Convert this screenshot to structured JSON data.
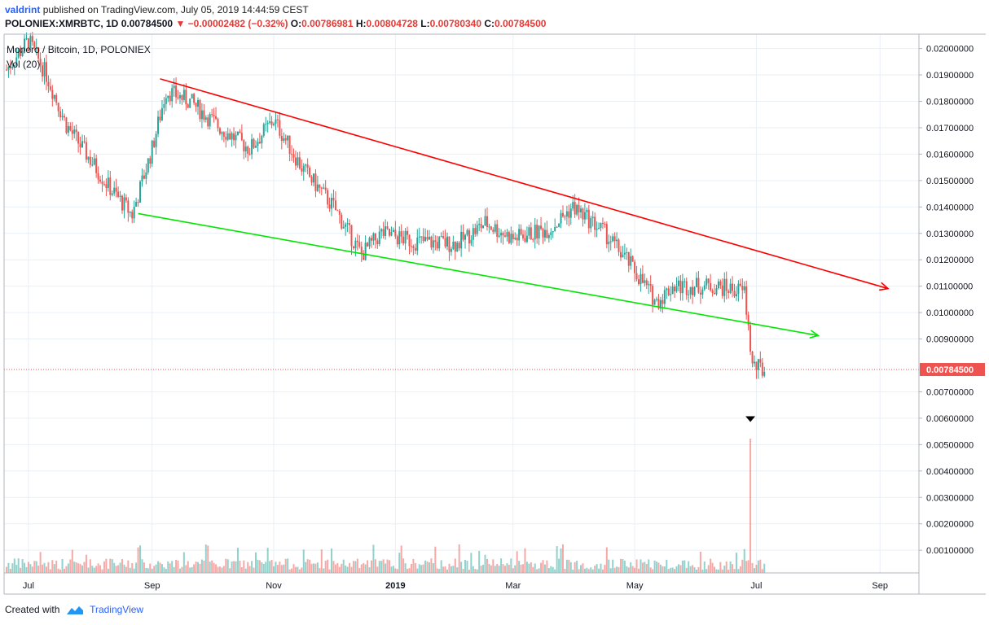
{
  "header": {
    "author": "valdrint",
    "published_text": "published on TradingView.com, July 05, 2019 14:44:59 CEST",
    "symbol": "POLONIEX:XMRBTC, 1D",
    "last": "0.00784500",
    "change_arrow": "▼",
    "change": "−0.00002482 (−0.32%)",
    "open_label": "O:",
    "open": "0.00786981",
    "high_label": "H:",
    "high": "0.00804728",
    "low_label": "L:",
    "low": "0.00780340",
    "close_label": "C:",
    "close": "0.00784500"
  },
  "legend": {
    "series_title": "Monero / Bitcoin, 1D, POLONIEX",
    "volume_label": "Vol (20)"
  },
  "footer": {
    "created_with": "Created with",
    "brand": "TradingView"
  },
  "colors": {
    "up": "#26a69a",
    "down": "#ef5350",
    "resistance_line": "#ff0000",
    "support_line": "#00e600",
    "price_line": "#ef5350",
    "grid": "#e9eff5"
  },
  "chart_data": {
    "type": "candlestick",
    "x_ticks": [
      "Jul",
      "Sep",
      "Nov",
      "2019",
      "Mar",
      "May",
      "Jul",
      "Sep"
    ],
    "y_ticks": [
      "0.02000000",
      "0.01900000",
      "0.01800000",
      "0.01700000",
      "0.01600000",
      "0.01500000",
      "0.01400000",
      "0.01300000",
      "0.01200000",
      "0.01100000",
      "0.01000000",
      "0.00900000",
      "0.00700000",
      "0.00600000",
      "0.00500000",
      "0.00400000",
      "0.00300000",
      "0.00200000",
      "0.00100000"
    ],
    "y_range": [
      0.0,
      0.0205
    ],
    "last_price_label": "0.00784500",
    "approx_close_path": [
      [
        "2018-06-20",
        0.0192
      ],
      [
        "2018-07-01",
        0.0203
      ],
      [
        "2018-07-10",
        0.019
      ],
      [
        "2018-07-20",
        0.0171
      ],
      [
        "2018-07-30",
        0.016
      ],
      [
        "2018-08-10",
        0.0148
      ],
      [
        "2018-08-22",
        0.0137
      ],
      [
        "2018-09-01",
        0.0162
      ],
      [
        "2018-09-08",
        0.0184
      ],
      [
        "2018-09-20",
        0.018
      ],
      [
        "2018-10-05",
        0.017
      ],
      [
        "2018-10-20",
        0.0162
      ],
      [
        "2018-11-01",
        0.0173
      ],
      [
        "2018-11-15",
        0.0155
      ],
      [
        "2018-12-01",
        0.014
      ],
      [
        "2018-12-15",
        0.0122
      ],
      [
        "2018-12-25",
        0.013
      ],
      [
        "2019-01-10",
        0.0127
      ],
      [
        "2019-02-01",
        0.0126
      ],
      [
        "2019-02-15",
        0.0134
      ],
      [
        "2019-03-01",
        0.0128
      ],
      [
        "2019-03-20",
        0.0132
      ],
      [
        "2019-03-31",
        0.014
      ],
      [
        "2019-04-15",
        0.0131
      ],
      [
        "2019-04-28",
        0.0119
      ],
      [
        "2019-05-12",
        0.0104
      ],
      [
        "2019-05-20",
        0.011
      ],
      [
        "2019-06-10",
        0.011
      ],
      [
        "2019-06-25",
        0.0108
      ],
      [
        "2019-06-29",
        0.008
      ],
      [
        "2019-07-05",
        0.0078
      ]
    ],
    "trendlines": [
      {
        "name": "resistance",
        "from": [
          "2018-09-05",
          0.01885
        ],
        "to": [
          "2019-09-05",
          0.01091
        ],
        "arrow": true
      },
      {
        "name": "support",
        "from": [
          "2018-08-25",
          0.01375
        ],
        "to": [
          "2019-08-01",
          0.00913
        ],
        "arrow": true
      }
    ],
    "marker": {
      "type": "down-triangle",
      "date": "2019-06-28",
      "value": 0.00595
    },
    "volume_spike_date": "2019-06-28"
  }
}
